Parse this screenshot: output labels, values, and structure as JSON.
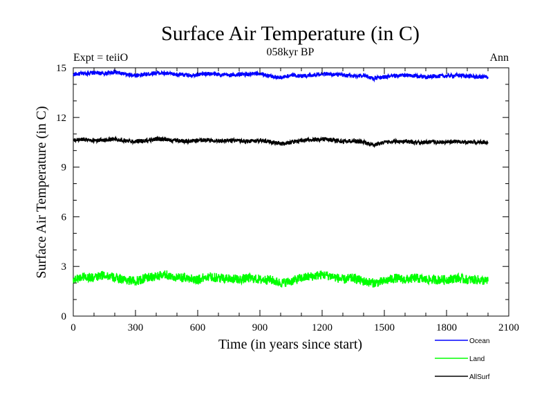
{
  "chart_data": {
    "type": "line",
    "title": "Surface Air Temperature (in C)",
    "subtitle": "058kyr BP",
    "left_note": "Expt = teiiO",
    "right_note": "Ann",
    "xlabel": "Time (in years since start)",
    "ylabel": "Surface Air Temperature (in C)",
    "xlim": [
      0,
      2100
    ],
    "ylim": [
      0,
      15
    ],
    "x_ticks": [
      0,
      300,
      600,
      900,
      1200,
      1500,
      1800,
      2100
    ],
    "y_ticks": [
      0,
      3,
      6,
      9,
      12,
      15
    ],
    "x_tick_labels": [
      "0",
      "300",
      "600",
      "900",
      "1200",
      "1500",
      "1800",
      "2100"
    ],
    "y_tick_labels": [
      "0",
      "3",
      "6",
      "9",
      "12",
      "15"
    ],
    "grid": false,
    "legend_position": "bottom-right",
    "x": [
      0,
      50,
      100,
      150,
      200,
      250,
      300,
      350,
      400,
      450,
      500,
      550,
      600,
      650,
      700,
      750,
      800,
      850,
      900,
      950,
      1000,
      1050,
      1100,
      1150,
      1200,
      1250,
      1300,
      1350,
      1400,
      1450,
      1500,
      1550,
      1600,
      1650,
      1700,
      1750,
      1800,
      1850,
      1900,
      1950,
      2000
    ],
    "series": [
      {
        "name": "Ocean",
        "color": "#0000ff",
        "values": [
          14.6,
          14.65,
          14.7,
          14.65,
          14.75,
          14.6,
          14.55,
          14.6,
          14.7,
          14.65,
          14.6,
          14.55,
          14.6,
          14.65,
          14.6,
          14.55,
          14.6,
          14.6,
          14.65,
          14.5,
          14.4,
          14.55,
          14.5,
          14.55,
          14.65,
          14.6,
          14.55,
          14.5,
          14.55,
          14.35,
          14.45,
          14.5,
          14.55,
          14.5,
          14.45,
          14.5,
          14.5,
          14.55,
          14.5,
          14.45,
          14.45
        ]
      },
      {
        "name": "Land",
        "color": "#00ff00",
        "values": [
          2.2,
          2.4,
          2.3,
          2.5,
          2.3,
          2.2,
          2.1,
          2.3,
          2.4,
          2.5,
          2.3,
          2.3,
          2.2,
          2.4,
          2.3,
          2.3,
          2.2,
          2.3,
          2.2,
          2.2,
          2.0,
          2.1,
          2.3,
          2.4,
          2.5,
          2.4,
          2.2,
          2.3,
          2.1,
          2.0,
          2.1,
          2.3,
          2.2,
          2.3,
          2.2,
          2.2,
          2.2,
          2.3,
          2.2,
          2.2,
          2.1
        ]
      },
      {
        "name": "AllSurf",
        "color": "#000000",
        "values": [
          10.6,
          10.7,
          10.6,
          10.65,
          10.7,
          10.6,
          10.55,
          10.6,
          10.7,
          10.65,
          10.6,
          10.55,
          10.6,
          10.65,
          10.6,
          10.6,
          10.6,
          10.55,
          10.6,
          10.55,
          10.4,
          10.5,
          10.6,
          10.65,
          10.7,
          10.65,
          10.55,
          10.6,
          10.5,
          10.35,
          10.5,
          10.55,
          10.55,
          10.5,
          10.5,
          10.5,
          10.5,
          10.55,
          10.5,
          10.5,
          10.5
        ]
      }
    ]
  }
}
